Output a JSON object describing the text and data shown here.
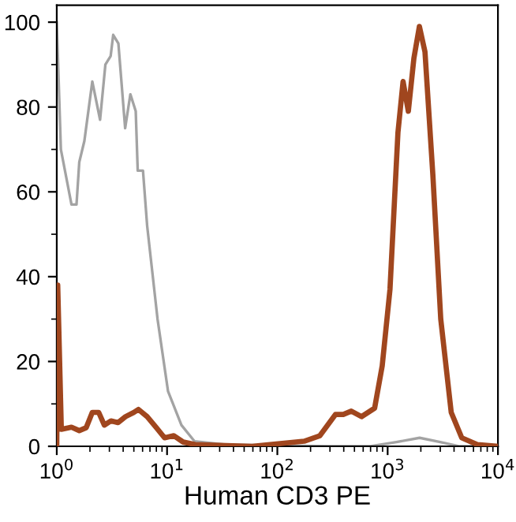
{
  "chart_data": {
    "type": "line",
    "xlabel": "Human CD3 PE",
    "log": "x",
    "xlim": [
      1,
      10000
    ],
    "xticks": [
      {
        "value": 1,
        "label": "10$^{0}$"
      },
      {
        "value": 10,
        "label": "10$^{1}$"
      },
      {
        "value": 100,
        "label": "10$^{2}$"
      },
      {
        "value": 1000,
        "label": "10$^{3}$"
      },
      {
        "value": 10000,
        "label": "10$^{4}$"
      }
    ],
    "ylim": [
      0,
      104
    ],
    "yticks": [
      0,
      20,
      40,
      60,
      80,
      100
    ],
    "grid": false,
    "marker": "none",
    "line_style": "solid",
    "series": [
      {
        "color": "#a3a3a3",
        "x": [
          1.0,
          1.09,
          1.36,
          1.51,
          1.6,
          1.78,
          2.1,
          2.47,
          2.76,
          3.08,
          3.25,
          3.62,
          4.17,
          4.65,
          5.2,
          5.42,
          6.05,
          6.6,
          8.2,
          10.2,
          13.5,
          17.7,
          34,
          300,
          700,
          1200,
          1950,
          3000,
          4500,
          10000
        ],
        "values": [
          100,
          70,
          57,
          57,
          67,
          72,
          86,
          77,
          90,
          92,
          97,
          95,
          75,
          83,
          79,
          65,
          65,
          52,
          30,
          13,
          5,
          1.2,
          0.4,
          0,
          0,
          1,
          2,
          1,
          0,
          0
        ]
      },
      {
        "color": "#a0461e",
        "x": [
          1.0,
          1.02,
          1.1,
          1.36,
          1.6,
          1.85,
          2.1,
          2.4,
          2.7,
          3.1,
          3.6,
          4.2,
          5.0,
          5.5,
          6.6,
          8.0,
          9.5,
          11.5,
          14,
          18,
          30,
          59,
          175,
          243,
          336,
          396,
          468,
          580,
          762,
          893,
          1050,
          1240,
          1380,
          1540,
          1730,
          1940,
          2180,
          2570,
          3030,
          3770,
          4700,
          6500,
          10000
        ],
        "values": [
          0,
          38,
          4,
          4.5,
          3.7,
          4.4,
          8,
          8,
          5,
          6,
          5.6,
          7,
          8,
          8.7,
          7,
          4.4,
          2,
          2.5,
          1,
          0.4,
          0.2,
          0,
          1.2,
          2.5,
          7.5,
          7.5,
          8.3,
          7,
          9,
          19,
          37,
          74,
          86,
          79,
          91.5,
          99,
          93,
          64,
          30,
          8,
          2,
          0.4,
          0
        ]
      }
    ]
  }
}
